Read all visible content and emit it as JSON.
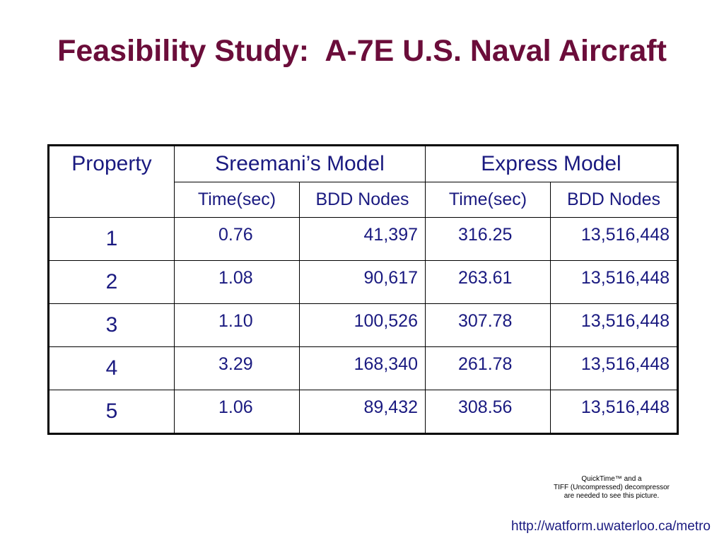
{
  "slide": {
    "title": "Feasibility Study:  A-7E U.S. Naval Aircraft"
  },
  "table": {
    "header": {
      "property": "Property",
      "sreemani_model": "Sreemani’s Model",
      "express_model": "Express Model",
      "sreemani_time": "Time(sec)",
      "sreemani_nodes": "BDD Nodes",
      "express_time": "Time(sec)",
      "express_nodes": "BDD Nodes"
    },
    "rows": [
      {
        "property": "1",
        "s_time": "0.76",
        "s_nodes": "41,397",
        "e_time": "316.25",
        "e_nodes": "13,516,448"
      },
      {
        "property": "2",
        "s_time": "1.08",
        "s_nodes": "90,617",
        "e_time": "263.61",
        "e_nodes": "13,516,448"
      },
      {
        "property": "3",
        "s_time": "1.10",
        "s_nodes": "100,526",
        "e_time": "307.78",
        "e_nodes": "13,516,448"
      },
      {
        "property": "4",
        "s_time": "3.29",
        "s_nodes": "168,340",
        "e_time": "261.78",
        "e_nodes": "13,516,448"
      },
      {
        "property": "5",
        "s_time": "1.06",
        "s_nodes": "89,432",
        "e_time": "308.56",
        "e_nodes": "13,516,448"
      }
    ]
  },
  "quicktime_placeholder": {
    "line1": "QuickTime™ and a",
    "line2": "TIFF (Uncompressed) decompressor",
    "line3": "are needed to see this picture."
  },
  "footer": {
    "url": "http://watform.uwaterloo.ca/metro"
  },
  "colors": {
    "title": "#6b0d3a",
    "text": "#1a1a80",
    "border": "#000000"
  }
}
